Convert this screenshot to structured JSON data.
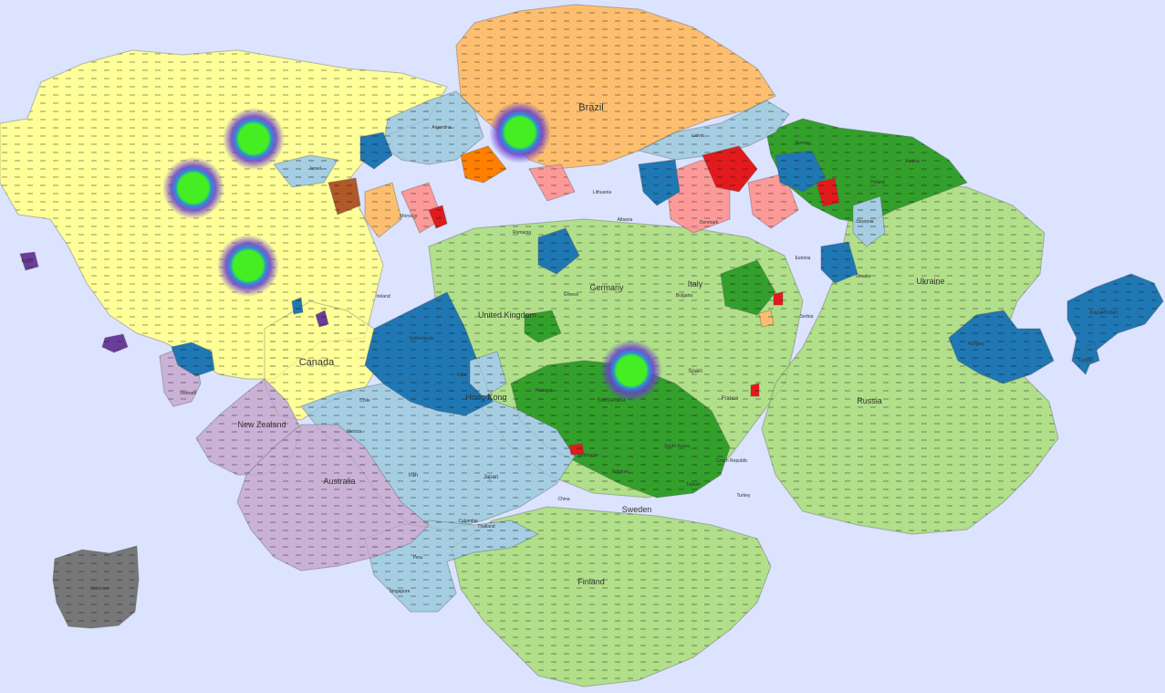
{
  "colors": {
    "ocean": "#dbe3ff",
    "yellow": "#ffff99",
    "orange": "#fdbf6f",
    "orange_dark": "#ff7f00",
    "light_blue": "#a6cee3",
    "blue": "#1f78b4",
    "light_green": "#b2df8a",
    "green": "#33a02c",
    "pink": "#fb9a99",
    "red": "#e31a1c",
    "purple": "#cab2d6",
    "violet": "#6a3d9a",
    "brown": "#b15928",
    "gray": "#777777",
    "marker_core": "#44ee22",
    "marker_halo": "#5544cc"
  },
  "labels": {
    "brazil": "Brazil",
    "canada": "Canada",
    "united_kingdom": "United Kingdom",
    "germany": "Germany",
    "italy": "Italy",
    "ukraine": "Ukraine",
    "new_zealand": "New Zealand",
    "australia": "Australia",
    "hong_kong": "Hong Kong",
    "finland": "Finland",
    "sweden": "Sweden",
    "russia": "Russia",
    "switzerland": "Switzerland",
    "kazakhstan": "Kazakhstan",
    "unknown": "Unknown",
    "iran": "Iran",
    "japan": "Japan",
    "spain": "Spain",
    "france": "France",
    "belgium": "Belgium",
    "czech_republic": "Czech Republic",
    "denmark": "Denmark",
    "norway": "Norway",
    "poland": "Poland",
    "austria": "Austria",
    "netherlands": "Netherlands",
    "ireland": "Ireland",
    "chile": "Chile",
    "mexico": "Mexico",
    "india": "India",
    "portugal": "Portugal",
    "greece": "Greece",
    "romania": "Romania",
    "albania": "Albania",
    "latvia": "Latvia",
    "lithuania": "Lithuania",
    "bulgaria": "Bulgaria",
    "estonia": "Estonia",
    "serbia": "Serbia",
    "slovenia": "Slovenia",
    "croatia": "Croatia",
    "hungary": "Hungary",
    "cyprus": "Cyprus",
    "south_korea": "South Korea",
    "china": "China",
    "taiwan": "Taiwan",
    "turkey": "Turkey",
    "israel": "Israel",
    "argentina": "Argentina",
    "colombia": "Colombia",
    "peru": "Peru",
    "singapore": "Singapore",
    "thailand": "Thailand",
    "vietnam": "Vietnam",
    "indonesia": "Indonesia",
    "egypt": "Egypt",
    "morocco": "Morocco"
  },
  "icons": {
    "marker": "glowing-dot-icon"
  }
}
